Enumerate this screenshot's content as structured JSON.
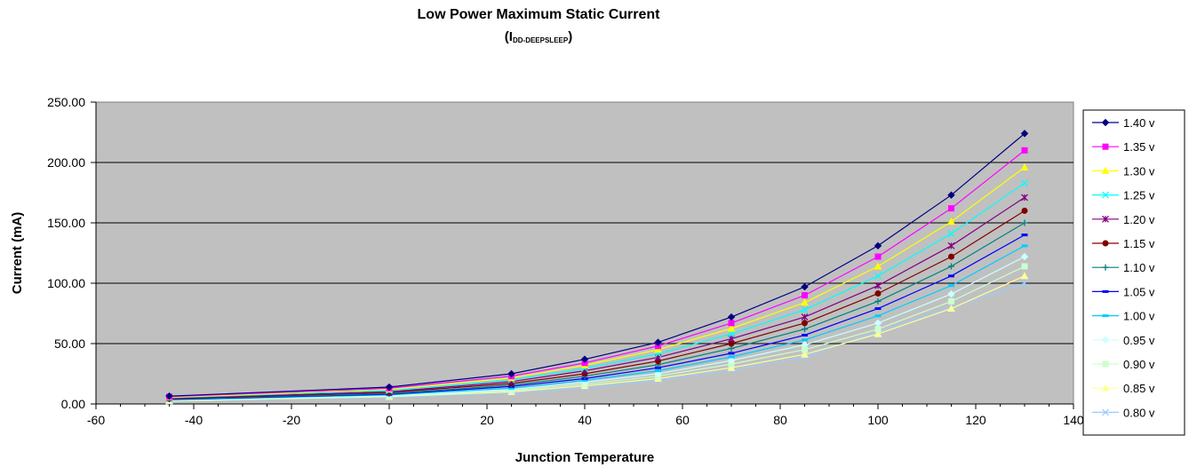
{
  "chart_data": {
    "type": "line",
    "title": "Low Power Maximum Static Current",
    "subtitle": {
      "open": "(I",
      "subscript": "DD-DEEPSLEEP",
      "close": ")"
    },
    "xlabel": "Junction Temperature",
    "ylabel": "Current (mA)",
    "xlim": [
      -60,
      140
    ],
    "ylim": [
      0,
      250
    ],
    "xticks": [
      "-60",
      "-40",
      "-20",
      "0",
      "20",
      "40",
      "60",
      "80",
      "100",
      "120",
      "140"
    ],
    "yticks": [
      "0.00",
      "50.00",
      "100.00",
      "150.00",
      "200.00",
      "250.00"
    ],
    "grid": "horizontal major gridlines",
    "plot_background": "#c0c0c0",
    "legend_position": "right",
    "x": [
      -45,
      0,
      25,
      40,
      55,
      70,
      85,
      100,
      115,
      130
    ],
    "series": [
      {
        "name": "1.40 v",
        "color": "#000080",
        "marker": "diamond",
        "values": [
          6.5,
          14,
          25,
          37,
          51,
          72,
          97,
          131,
          173,
          224
        ]
      },
      {
        "name": "1.35 v",
        "color": "#ff00ff",
        "marker": "square",
        "values": [
          6,
          13,
          23,
          34,
          48,
          67,
          90,
          122,
          162,
          210
        ]
      },
      {
        "name": "1.30 v",
        "color": "#ffff00",
        "marker": "triangle",
        "values": [
          5.5,
          12,
          21.5,
          32,
          45,
          62.5,
          84,
          114,
          151,
          196
        ]
      },
      {
        "name": "1.25 v",
        "color": "#00ffff",
        "marker": "x",
        "values": [
          5.2,
          11,
          20,
          29.5,
          41.5,
          58,
          78,
          106,
          141,
          183
        ]
      },
      {
        "name": "1.20 v",
        "color": "#800080",
        "marker": "star",
        "values": [
          4.8,
          10,
          18.5,
          27.5,
          38.5,
          54,
          72,
          98,
          131,
          171
        ]
      },
      {
        "name": "1.15 v",
        "color": "#800000",
        "marker": "circle",
        "values": [
          4.4,
          9.5,
          17,
          25,
          35.5,
          50,
          67,
          91.5,
          122,
          160
        ]
      },
      {
        "name": "1.10 v",
        "color": "#008080",
        "marker": "plus",
        "values": [
          4,
          8.5,
          15.5,
          23,
          32.5,
          46,
          62,
          85,
          114,
          150
        ]
      },
      {
        "name": "1.05 v",
        "color": "#0000ff",
        "marker": "dash",
        "values": [
          3.7,
          8,
          14.5,
          21,
          30,
          42,
          57,
          79,
          106,
          140
        ]
      },
      {
        "name": "1.00 v",
        "color": "#00ccff",
        "marker": "dash",
        "values": [
          3.4,
          7.5,
          13,
          19.5,
          27.5,
          39,
          53,
          73,
          98,
          131
        ]
      },
      {
        "name": "0.95 v",
        "color": "#ccffff",
        "marker": "diamond",
        "values": [
          3.1,
          7,
          12,
          18,
          25,
          36,
          49,
          67,
          91,
          122
        ]
      },
      {
        "name": "0.90 v",
        "color": "#ccffcc",
        "marker": "square",
        "values": [
          2.8,
          6.5,
          11,
          16.5,
          23,
          33,
          45,
          62,
          85,
          114
        ]
      },
      {
        "name": "0.85 v",
        "color": "#ffff99",
        "marker": "triangle",
        "values": [
          2.5,
          6,
          10,
          15,
          21,
          30,
          41,
          58,
          79,
          106
        ]
      },
      {
        "name": "0.80 v",
        "color": "#99ccff",
        "marker": "x",
        "values": [
          2.2,
          5.5,
          9,
          13.5,
          19.5,
          28,
          39,
          60,
          80,
          100
        ]
      }
    ]
  }
}
